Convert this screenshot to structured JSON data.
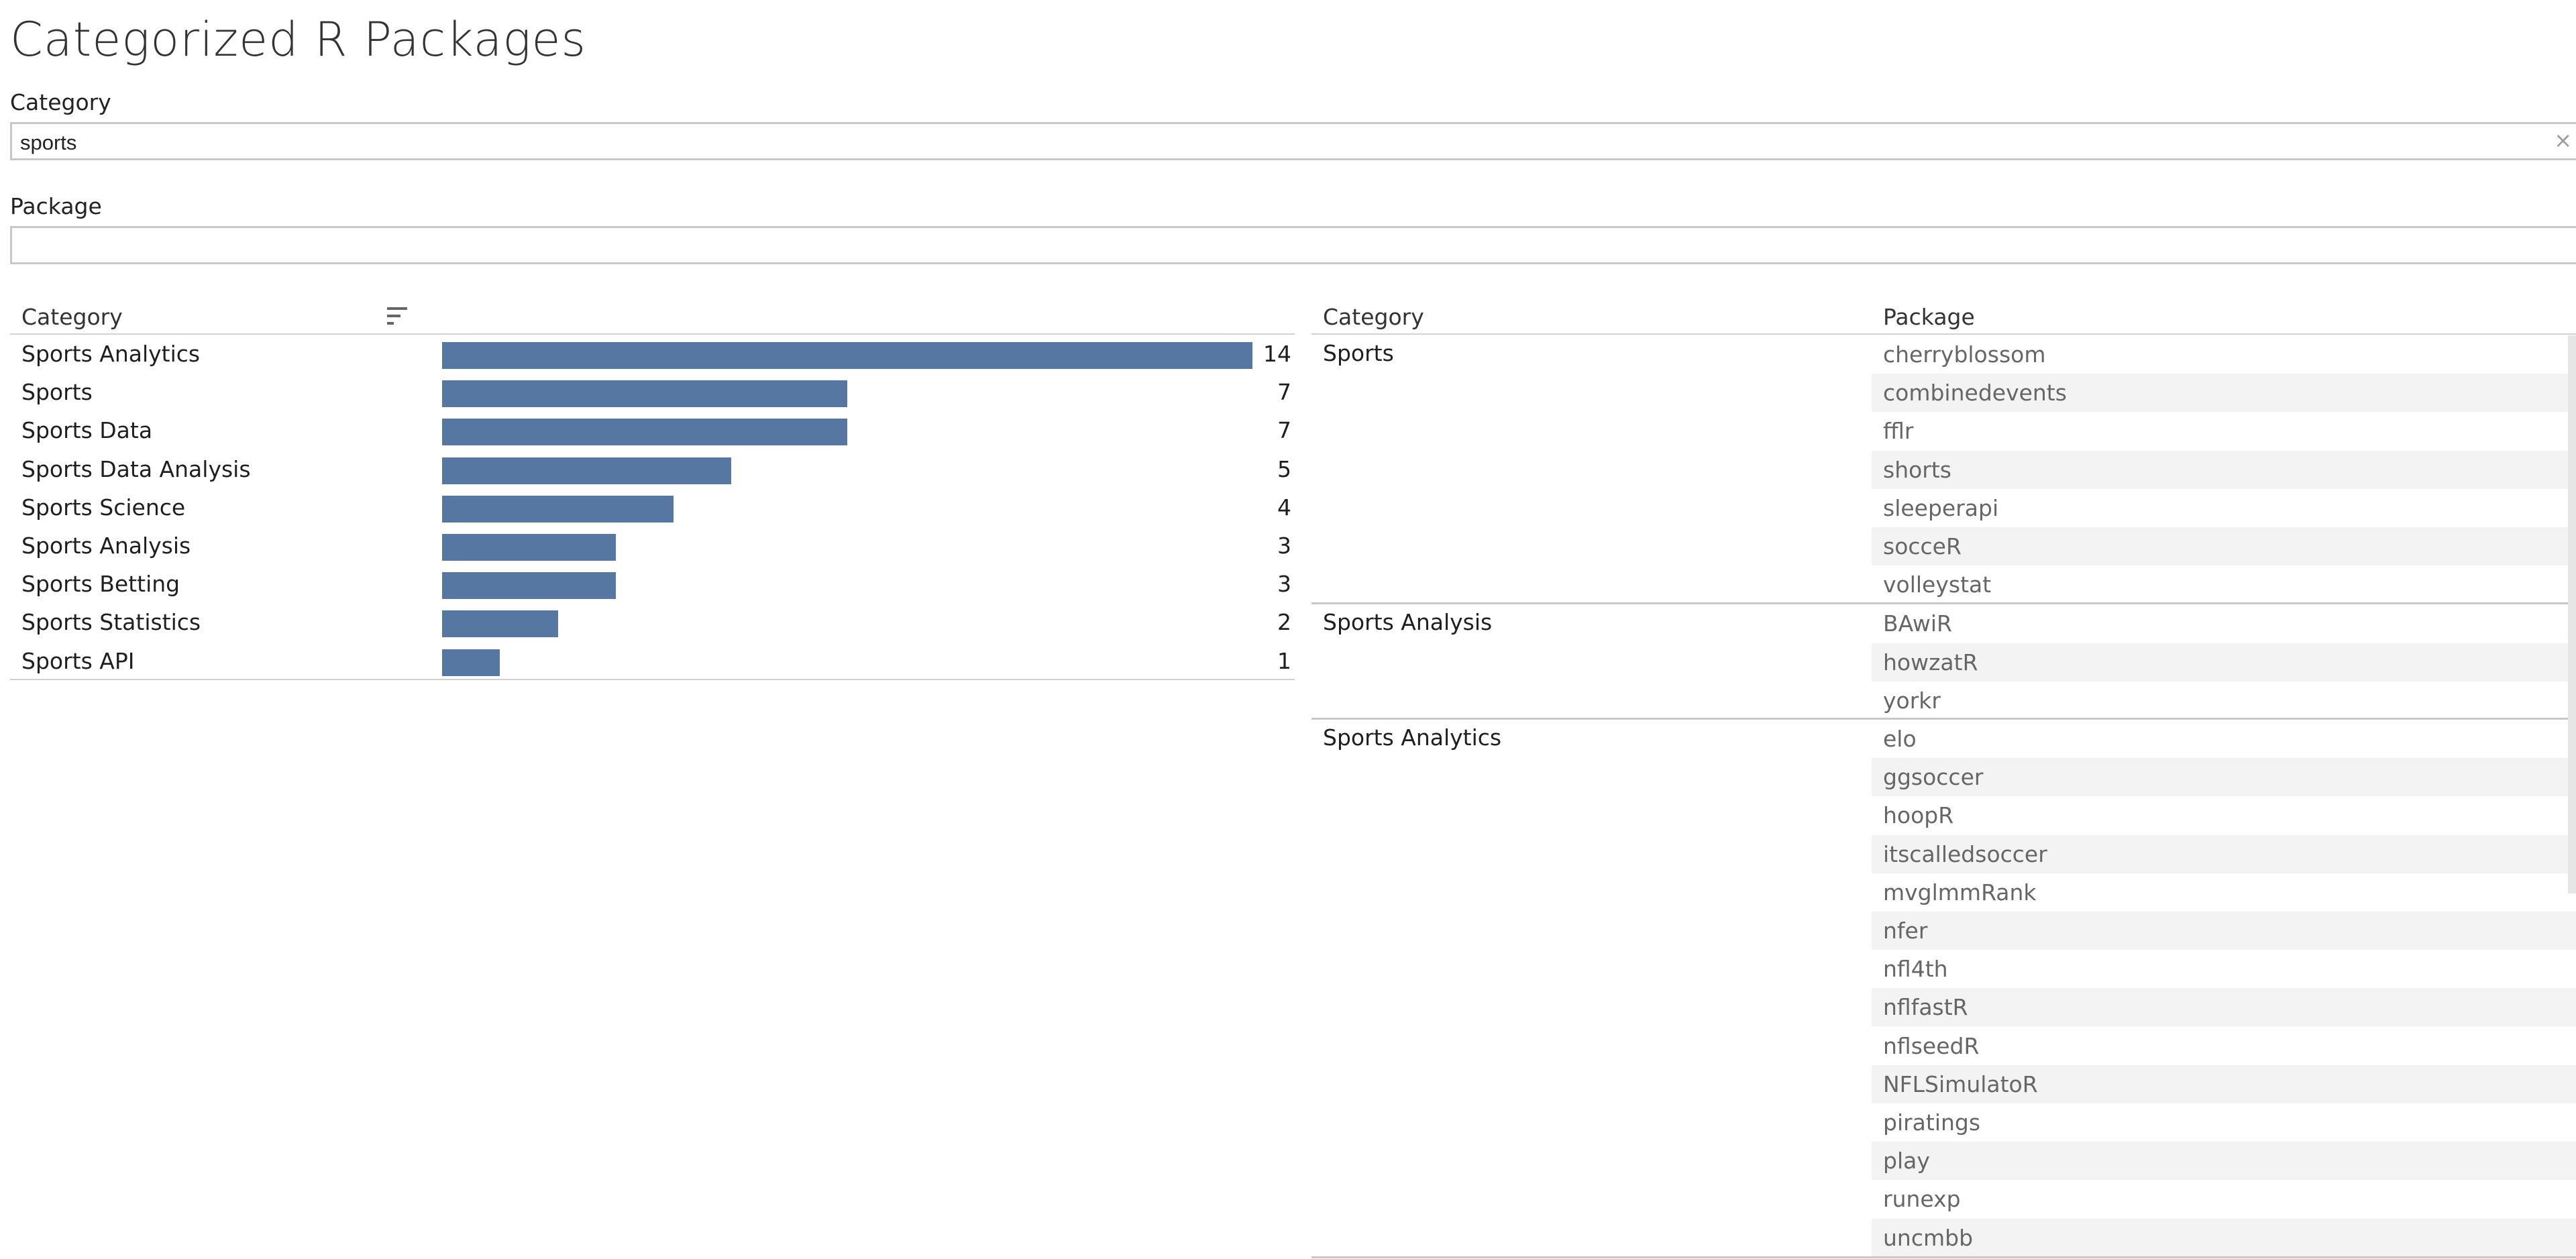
{
  "title": "Categorized R Packages",
  "filters": {
    "category": {
      "label": "Category",
      "value": "sports"
    },
    "package": {
      "label": "Package",
      "value": ""
    }
  },
  "icons": {
    "clear": "clear-x-icon",
    "sort": "sort-descending-icon"
  },
  "colors": {
    "bar": "#5577a2",
    "alt_row": "#f3f3f3"
  },
  "chart_data": {
    "type": "bar",
    "orientation": "horizontal",
    "header_label": "Category",
    "categories": [
      "Sports Analytics",
      "Sports",
      "Sports Data",
      "Sports Data Analysis",
      "Sports Science",
      "Sports Analysis",
      "Sports Betting",
      "Sports Statistics",
      "Sports API"
    ],
    "values": [
      14,
      7,
      7,
      5,
      4,
      3,
      3,
      2,
      1
    ],
    "xlim": [
      0,
      14
    ],
    "grid": false,
    "sorted": "descending"
  },
  "table": {
    "headers": {
      "category": "Category",
      "package": "Package"
    },
    "groups": [
      {
        "category": "Sports",
        "packages": [
          "cherryblossom",
          "combinedevents",
          "fflr",
          "shorts",
          "sleeperapi",
          "socceR",
          "volleystat"
        ]
      },
      {
        "category": "Sports Analysis",
        "packages": [
          "BAwiR",
          "howzatR",
          "yorkr"
        ]
      },
      {
        "category": "Sports Analytics",
        "packages": [
          "elo",
          "ggsoccer",
          "hoopR",
          "itscalledsoccer",
          "mvglmmRank",
          "nfer",
          "nfl4th",
          "nflfastR",
          "nflseedR",
          "NFLSimulatoR",
          "piratings",
          "play",
          "runexp",
          "uncmbb"
        ]
      }
    ]
  }
}
